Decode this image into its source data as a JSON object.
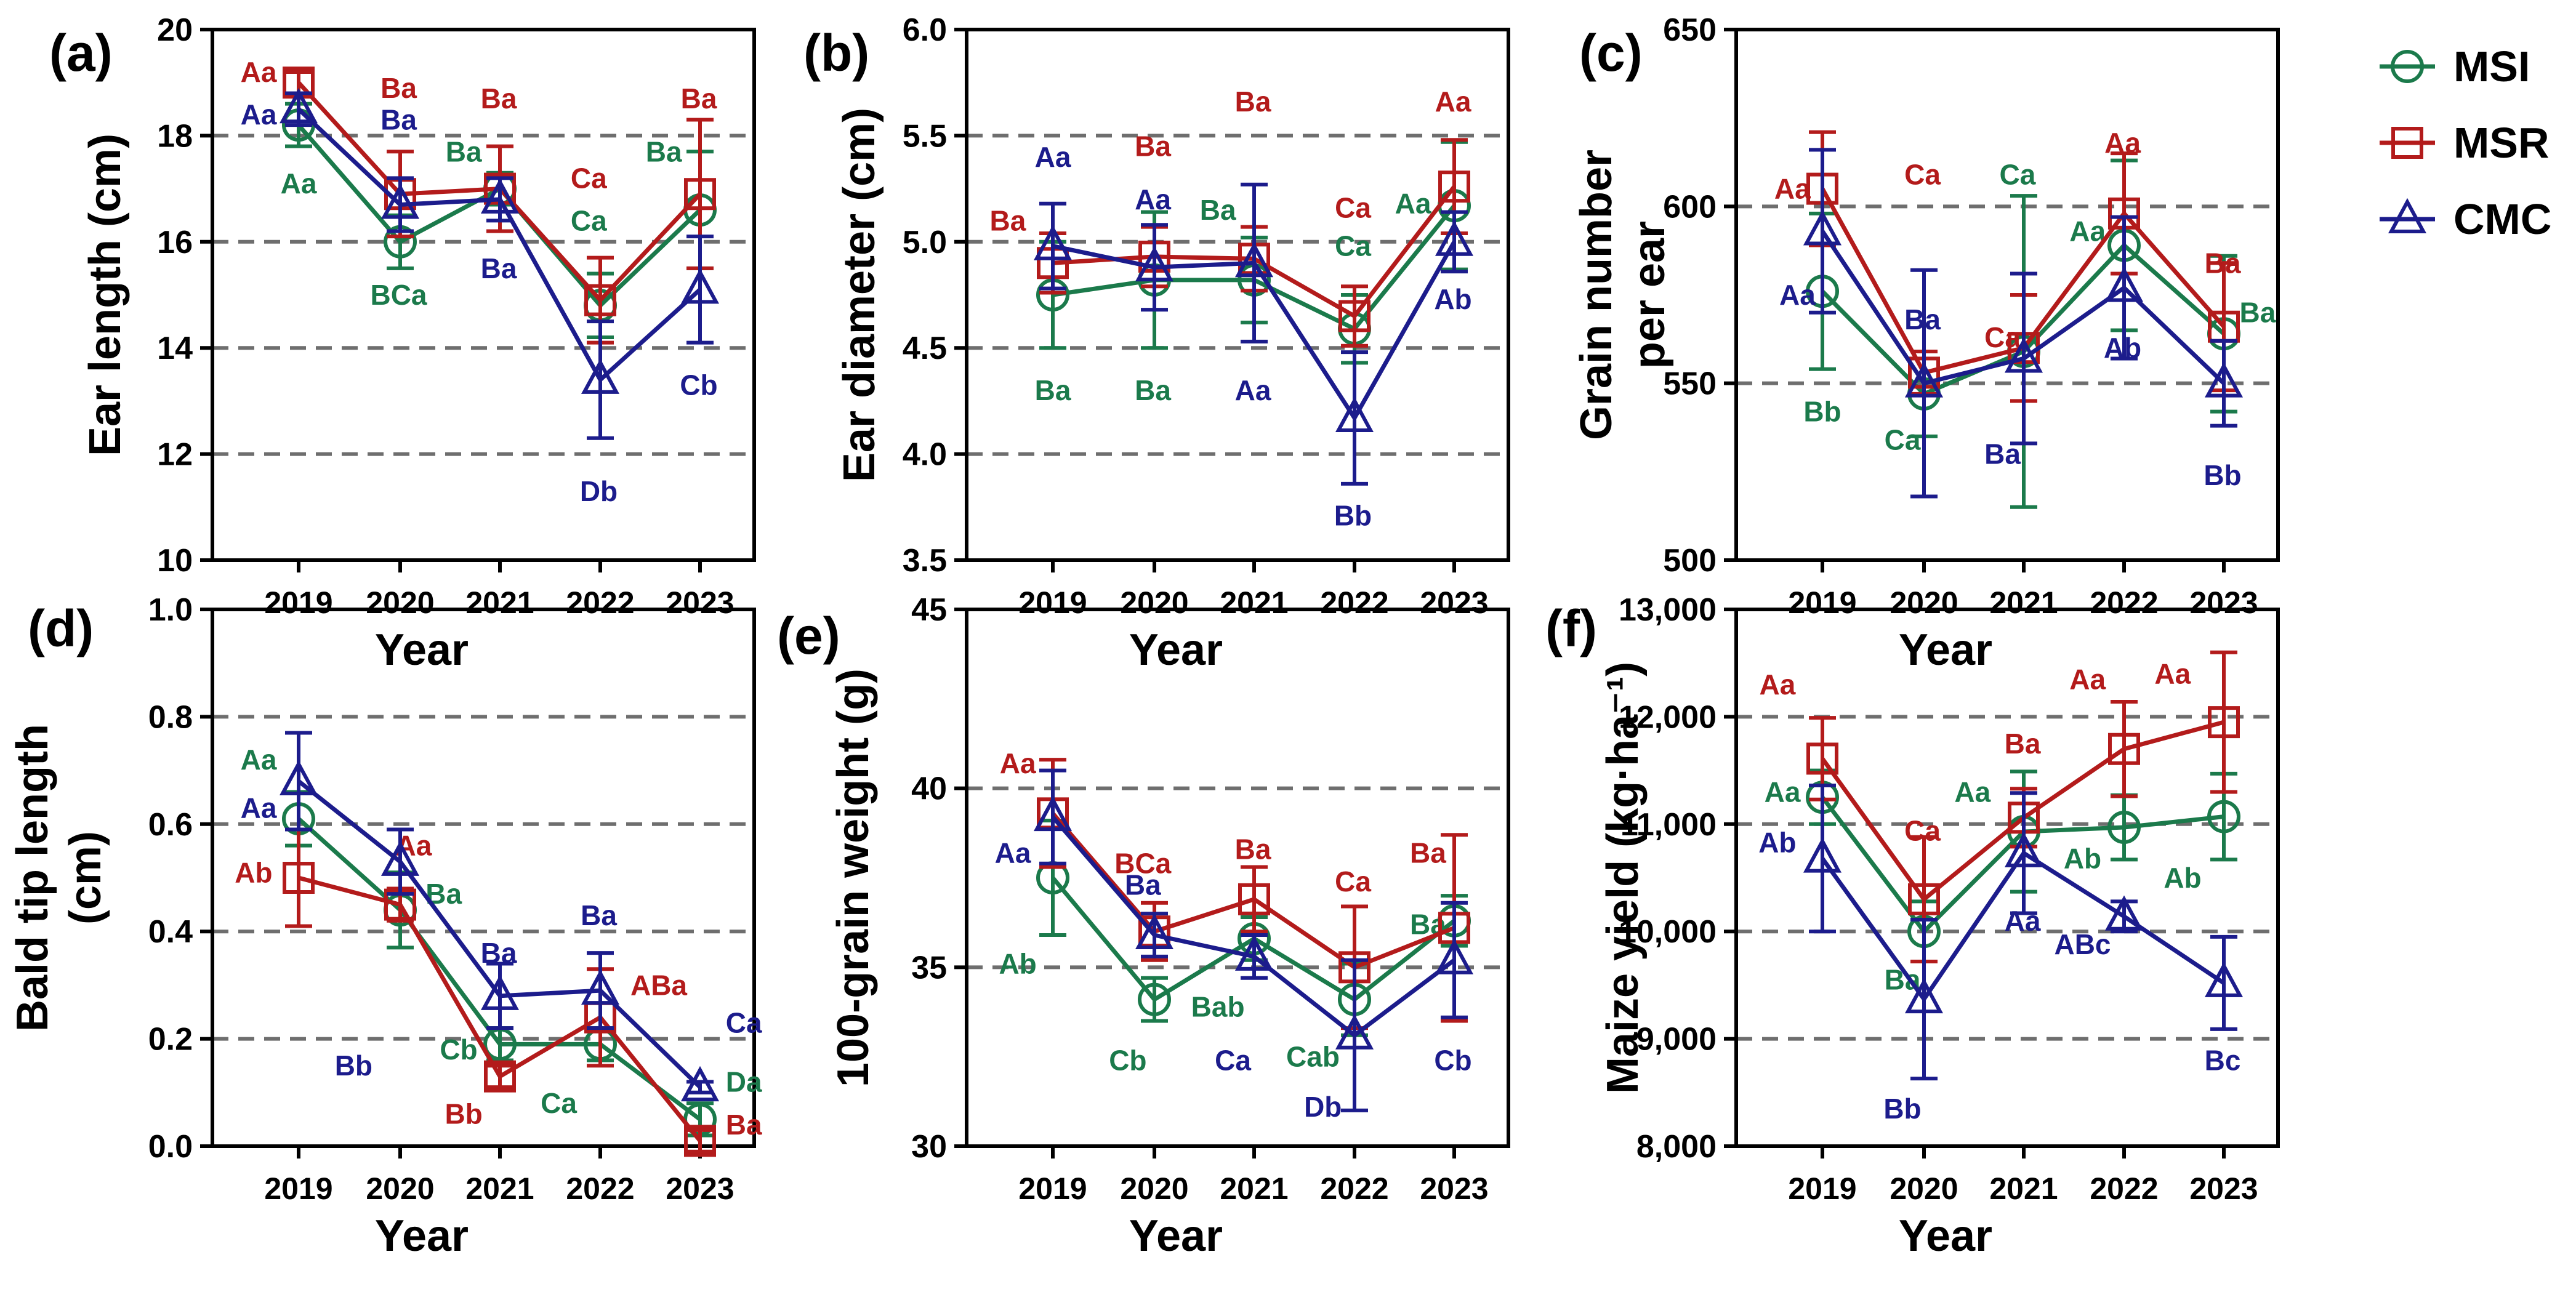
{
  "colors": {
    "MSI": "#1b7a4b",
    "MSR": "#b31b1b",
    "CMC": "#1c1c8c",
    "grid": "#6e6e6e",
    "axis": "#000000"
  },
  "legend": [
    {
      "name": "MSI",
      "marker": "circle"
    },
    {
      "name": "MSR",
      "marker": "square"
    },
    {
      "name": "CMC",
      "marker": "triangle"
    }
  ],
  "xlabel": "Year",
  "chart_data": [
    {
      "id": "a",
      "type": "line",
      "label": "(a)",
      "ylabel": [
        "Ear length (cm)"
      ],
      "x": [
        "2019",
        "2020",
        "2021",
        "2022",
        "2023"
      ],
      "ylim": [
        10,
        20
      ],
      "yticks": [
        10,
        12,
        14,
        16,
        18,
        20
      ],
      "ytick_labels": [
        "10",
        "12",
        "14",
        "16",
        "18",
        "20"
      ],
      "gridlines": [
        12,
        14,
        16,
        18
      ],
      "series": [
        {
          "name": "MSI",
          "values": [
            18.2,
            16.0,
            17.0,
            14.8,
            16.6
          ],
          "err": [
            0.4,
            0.5,
            0.3,
            0.6,
            1.1
          ],
          "letters": [
            {
              "text": "Aa",
              "x": 0,
              "y": 17.1
            },
            {
              "text": "BCa",
              "x": 1,
              "y": 15.0
            },
            {
              "text": "Ba",
              "x": 1.65,
              "y": 17.7
            },
            {
              "text": "Ca",
              "x": 2.9,
              "y": 16.4
            },
            {
              "text": "Ba",
              "x": 3.65,
              "y": 17.7
            }
          ]
        },
        {
          "name": "MSR",
          "values": [
            19.0,
            16.9,
            17.0,
            14.9,
            16.9
          ],
          "err": [
            0.2,
            0.8,
            0.8,
            0.8,
            1.4
          ],
          "letters": [
            {
              "text": "Aa",
              "x": -0.4,
              "y": 19.2
            },
            {
              "text": "Ba",
              "x": 1,
              "y": 18.9
            },
            {
              "text": "Ba",
              "x": 2,
              "y": 18.7
            },
            {
              "text": "Ca",
              "x": 2.9,
              "y": 17.2
            },
            {
              "text": "Ba",
              "x": 4,
              "y": 18.7
            }
          ]
        },
        {
          "name": "CMC",
          "values": [
            18.5,
            16.7,
            16.8,
            13.4,
            15.1
          ],
          "err": [
            0.3,
            0.5,
            0.4,
            1.1,
            1.0
          ],
          "letters": [
            {
              "text": "Aa",
              "x": -0.4,
              "y": 18.4
            },
            {
              "text": "Ba",
              "x": 1,
              "y": 18.3
            },
            {
              "text": "Ba",
              "x": 2,
              "y": 15.5
            },
            {
              "text": "Db",
              "x": 3,
              "y": 11.3
            },
            {
              "text": "Cb",
              "x": 4,
              "y": 13.3
            }
          ]
        }
      ]
    },
    {
      "id": "b",
      "type": "line",
      "label": "(b)",
      "ylabel": [
        "Ear diameter (cm)"
      ],
      "x": [
        "2019",
        "2020",
        "2021",
        "2022",
        "2023"
      ],
      "ylim": [
        3.5,
        6.0
      ],
      "yticks": [
        3.5,
        4.0,
        4.5,
        5.0,
        5.5,
        6.0
      ],
      "ytick_labels": [
        "3.5",
        "4.0",
        "4.5",
        "5.0",
        "5.5",
        "6.0"
      ],
      "gridlines": [
        4.0,
        4.5,
        5.0,
        5.5
      ],
      "series": [
        {
          "name": "MSI",
          "values": [
            4.75,
            4.82,
            4.82,
            4.59,
            5.17
          ],
          "err": [
            0.25,
            0.32,
            0.2,
            0.16,
            0.3
          ],
          "letters": [
            {
              "text": "Ba",
              "x": 0,
              "y": 4.3
            },
            {
              "text": "Ba",
              "x": 1,
              "y": 4.3
            },
            {
              "text": "Ba",
              "x": 1.65,
              "y": 5.15
            },
            {
              "text": "Ca",
              "x": 3,
              "y": 4.98
            },
            {
              "text": "Aa",
              "x": 3.6,
              "y": 5.18
            }
          ]
        },
        {
          "name": "MSR",
          "values": [
            4.9,
            4.93,
            4.92,
            4.65,
            5.26
          ],
          "err": [
            0.14,
            0.14,
            0.15,
            0.14,
            0.22
          ],
          "letters": [
            {
              "text": "Ba",
              "x": -0.45,
              "y": 5.1
            },
            {
              "text": "Ba",
              "x": 1,
              "y": 5.45
            },
            {
              "text": "Ba",
              "x": 2,
              "y": 5.66
            },
            {
              "text": "Ca",
              "x": 3,
              "y": 5.16
            },
            {
              "text": "Aa",
              "x": 4,
              "y": 5.66
            }
          ]
        },
        {
          "name": "CMC",
          "values": [
            4.98,
            4.88,
            4.9,
            4.17,
            5.0
          ],
          "err": [
            0.2,
            0.2,
            0.37,
            0.31,
            0.14
          ],
          "letters": [
            {
              "text": "Aa",
              "x": 0,
              "y": 5.4
            },
            {
              "text": "Aa",
              "x": 1,
              "y": 5.2
            },
            {
              "text": "Aa",
              "x": 2,
              "y": 4.3
            },
            {
              "text": "Bb",
              "x": 3,
              "y": 3.71
            },
            {
              "text": "Ab",
              "x": 4,
              "y": 4.73
            }
          ]
        }
      ]
    },
    {
      "id": "c",
      "type": "line",
      "label": "(c)",
      "ylabel": [
        "Grain number",
        "per ear"
      ],
      "x": [
        "2019",
        "2020",
        "2021",
        "2022",
        "2023"
      ],
      "ylim": [
        500,
        650
      ],
      "yticks": [
        500,
        550,
        600,
        650
      ],
      "ytick_labels": [
        "500",
        "550",
        "600",
        "650"
      ],
      "gridlines": [
        550,
        600
      ],
      "series": [
        {
          "name": "MSI",
          "values": [
            576,
            547,
            559,
            589,
            564
          ],
          "err": [
            22,
            12,
            44,
            24,
            22
          ],
          "letters": [
            {
              "text": "Bb",
              "x": 0,
              "y": 542
            },
            {
              "text": "Ca",
              "x": 0.8,
              "y": 534
            },
            {
              "text": "Ca",
              "x": 1.95,
              "y": 609
            },
            {
              "text": "Aa",
              "x": 2.65,
              "y": 593
            },
            {
              "text": "Ba",
              "x": 4.35,
              "y": 570
            }
          ]
        },
        {
          "name": "MSR",
          "values": [
            605,
            553,
            560,
            598,
            566
          ],
          "err": [
            16,
            6,
            15,
            17,
            18
          ],
          "letters": [
            {
              "text": "Aa",
              "x": -0.3,
              "y": 605
            },
            {
              "text": "Ca",
              "x": 1,
              "y": 609
            },
            {
              "text": "Ca",
              "x": 1.8,
              "y": 563
            },
            {
              "text": "Aa",
              "x": 3,
              "y": 618
            },
            {
              "text": "Ba",
              "x": 4,
              "y": 584
            }
          ]
        },
        {
          "name": "CMC",
          "values": [
            593,
            550,
            557,
            577,
            550
          ],
          "err": [
            23,
            32,
            24,
            20,
            12
          ],
          "letters": [
            {
              "text": "Aa",
              "x": -0.25,
              "y": 575
            },
            {
              "text": "Ba",
              "x": 1,
              "y": 568
            },
            {
              "text": "Ba",
              "x": 1.8,
              "y": 530
            },
            {
              "text": "Ab",
              "x": 3,
              "y": 560
            },
            {
              "text": "Bb",
              "x": 4,
              "y": 524
            }
          ]
        }
      ]
    },
    {
      "id": "d",
      "type": "line",
      "label": "(d)",
      "ylabel": [
        "Bald tip length",
        "(cm)"
      ],
      "x": [
        "2019",
        "2020",
        "2021",
        "2022",
        "2023"
      ],
      "ylim": [
        0.0,
        1.0
      ],
      "yticks": [
        0.0,
        0.2,
        0.4,
        0.6,
        0.8,
        1.0
      ],
      "ytick_labels": [
        "0.0",
        "0.2",
        "0.4",
        "0.6",
        "0.8",
        "1.0"
      ],
      "gridlines": [
        0.2,
        0.4,
        0.6,
        0.8
      ],
      "series": [
        {
          "name": "MSI",
          "values": [
            0.61,
            0.44,
            0.19,
            0.19,
            0.05
          ],
          "err": [
            0.05,
            0.07,
            0.03,
            0.03,
            0.03
          ],
          "letters": [
            {
              "text": "Aa",
              "x": -0.4,
              "y": 0.72
            },
            {
              "text": "Ba",
              "x": 1.45,
              "y": 0.47
            },
            {
              "text": "Cb",
              "x": 1.6,
              "y": 0.18
            },
            {
              "text": "Ca",
              "x": 2.6,
              "y": 0.08
            },
            {
              "text": "Da",
              "x": 4.45,
              "y": 0.12
            }
          ]
        },
        {
          "name": "MSR",
          "values": [
            0.5,
            0.45,
            0.13,
            0.24,
            0.01
          ],
          "err": [
            0.09,
            0.03,
            0.02,
            0.09,
            0.02
          ],
          "letters": [
            {
              "text": "Ab",
              "x": -0.45,
              "y": 0.51
            },
            {
              "text": "Aa",
              "x": 1.15,
              "y": 0.56
            },
            {
              "text": "Bb",
              "x": 1.65,
              "y": 0.06
            },
            {
              "text": "ABa",
              "x": 3.6,
              "y": 0.3
            },
            {
              "text": "Ba",
              "x": 4.45,
              "y": 0.04
            }
          ]
        },
        {
          "name": "CMC",
          "values": [
            0.68,
            0.53,
            0.28,
            0.29,
            0.11
          ],
          "err": [
            0.09,
            0.06,
            0.06,
            0.07,
            0.01
          ],
          "letters": [
            {
              "text": "Aa",
              "x": -0.4,
              "y": 0.63
            },
            {
              "text": "Bb",
              "x": 0.55,
              "y": 0.15
            },
            {
              "text": "Ba",
              "x": 2,
              "y": 0.36
            },
            {
              "text": "Ba",
              "x": 3,
              "y": 0.43
            },
            {
              "text": "Ca",
              "x": 4.45,
              "y": 0.23
            }
          ]
        }
      ]
    },
    {
      "id": "e",
      "type": "line",
      "label": "(e)",
      "ylabel": [
        "100-grain weight (g)"
      ],
      "x": [
        "2019",
        "2020",
        "2021",
        "2022",
        "2023"
      ],
      "ylim": [
        30,
        45
      ],
      "yticks": [
        30,
        35,
        40,
        45
      ],
      "ytick_labels": [
        "30",
        "35",
        "40",
        "45"
      ],
      "gridlines": [
        35,
        40
      ],
      "series": [
        {
          "name": "MSI",
          "values": [
            37.5,
            34.1,
            35.8,
            34.1,
            36.3
          ],
          "err": [
            1.6,
            0.6,
            0.6,
            1.0,
            0.7
          ],
          "letters": [
            {
              "text": "Ab",
              "x": -0.35,
              "y": 35.1
            },
            {
              "text": "Cb",
              "x": 0.75,
              "y": 32.4
            },
            {
              "text": "Bab",
              "x": 1.65,
              "y": 33.9
            },
            {
              "text": "Cab",
              "x": 2.6,
              "y": 32.5
            },
            {
              "text": "Ba",
              "x": 3.75,
              "y": 36.2
            }
          ]
        },
        {
          "name": "MSR",
          "values": [
            39.3,
            36.0,
            36.9,
            35.0,
            36.1
          ],
          "err": [
            1.5,
            0.8,
            0.9,
            1.7,
            2.6
          ],
          "letters": [
            {
              "text": "Aa",
              "x": -0.35,
              "y": 40.7
            },
            {
              "text": "BCa",
              "x": 0.9,
              "y": 37.9
            },
            {
              "text": "Ba",
              "x": 2,
              "y": 38.3
            },
            {
              "text": "Ca",
              "x": 3,
              "y": 37.4
            },
            {
              "text": "Ba",
              "x": 3.75,
              "y": 38.2
            }
          ]
        },
        {
          "name": "CMC",
          "values": [
            39.2,
            35.9,
            35.3,
            33.1,
            35.2
          ],
          "err": [
            1.3,
            0.6,
            0.6,
            2.1,
            1.6
          ],
          "letters": [
            {
              "text": "Aa",
              "x": -0.4,
              "y": 38.2
            },
            {
              "text": "Ba",
              "x": 0.9,
              "y": 37.3
            },
            {
              "text": "Ca",
              "x": 1.8,
              "y": 32.4
            },
            {
              "text": "Db",
              "x": 2.7,
              "y": 31.1
            },
            {
              "text": "Cb",
              "x": 4,
              "y": 32.4
            }
          ]
        }
      ]
    },
    {
      "id": "f",
      "type": "line",
      "label": "(f)",
      "ylabel": [
        "Maize yield (kg·ha⁻¹)"
      ],
      "x": [
        "2019",
        "2020",
        "2021",
        "2022",
        "2023"
      ],
      "ylim": [
        8000,
        13000
      ],
      "yticks": [
        8000,
        9000,
        10000,
        11000,
        12000,
        13000
      ],
      "ytick_labels": [
        "8,000",
        "9,000",
        "10,000",
        "11,000",
        "12,000",
        "13,000"
      ],
      "gridlines": [
        9000,
        10000,
        11000,
        12000
      ],
      "series": [
        {
          "name": "MSI",
          "values": [
            11250,
            10000,
            10930,
            10970,
            11070
          ],
          "err": [
            250,
            280,
            560,
            300,
            400
          ],
          "letters": [
            {
              "text": "Aa",
              "x": -0.4,
              "y": 11300
            },
            {
              "text": "Ba",
              "x": 0.8,
              "y": 9550
            },
            {
              "text": "Aa",
              "x": 1.5,
              "y": 11300
            },
            {
              "text": "Ab",
              "x": 2.6,
              "y": 10680
            },
            {
              "text": "Ab",
              "x": 3.6,
              "y": 10500
            }
          ]
        },
        {
          "name": "MSR",
          "values": [
            11610,
            10300,
            11060,
            11700,
            11950
          ],
          "err": [
            380,
            580,
            270,
            440,
            650
          ],
          "letters": [
            {
              "text": "Aa",
              "x": -0.45,
              "y": 12300
            },
            {
              "text": "Ca",
              "x": 1,
              "y": 10940
            },
            {
              "text": "Ba",
              "x": 2,
              "y": 11750
            },
            {
              "text": "Aa",
              "x": 2.65,
              "y": 12350
            },
            {
              "text": "Aa",
              "x": 3.5,
              "y": 12400
            }
          ]
        },
        {
          "name": "CMC",
          "values": [
            10680,
            9370,
            10730,
            10140,
            9520
          ],
          "err": [
            680,
            740,
            560,
            140,
            430
          ],
          "letters": [
            {
              "text": "Ab",
              "x": -0.45,
              "y": 10830
            },
            {
              "text": "Bb",
              "x": 0.8,
              "y": 8350
            },
            {
              "text": "Aa",
              "x": 2,
              "y": 10100
            },
            {
              "text": "ABc",
              "x": 2.6,
              "y": 9880
            },
            {
              "text": "Bc",
              "x": 4,
              "y": 8800
            }
          ]
        }
      ]
    }
  ]
}
